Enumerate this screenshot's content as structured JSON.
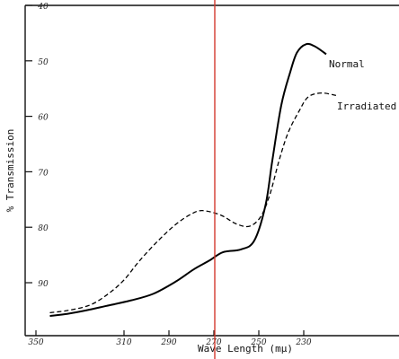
{
  "chart_data": {
    "type": "line",
    "title": "",
    "xlabel": "Wave Length (mμ)",
    "ylabel": "% Transmission",
    "xlim": [
      350,
      210
    ],
    "ylim": [
      40,
      100
    ],
    "x_ticks": [
      350,
      310,
      290,
      270,
      250,
      230
    ],
    "x_tick_labels": [
      "350",
      "310",
      "290",
      "270",
      "250",
      "230"
    ],
    "y_ticks": [
      40,
      50,
      60,
      70,
      80,
      90
    ],
    "y_tick_labels": [
      "40",
      "50",
      "60",
      "70",
      "80",
      "90"
    ],
    "grid": false,
    "reference_line": {
      "x": 270,
      "color": "#d23a2e"
    },
    "series": [
      {
        "name": "Normal",
        "style": "solid",
        "color": "#000000",
        "points": [
          [
            343,
            96.0
          ],
          [
            335,
            95.6
          ],
          [
            327,
            95.0
          ],
          [
            318,
            94.2
          ],
          [
            307,
            93.2
          ],
          [
            297,
            92.0
          ],
          [
            287,
            89.8
          ],
          [
            279,
            87.6
          ],
          [
            272,
            86.0
          ],
          [
            266,
            84.5
          ],
          [
            258,
            84.0
          ],
          [
            252,
            82.4
          ],
          [
            247,
            76.0
          ],
          [
            244,
            68.0
          ],
          [
            240,
            58.0
          ],
          [
            236,
            52.0
          ],
          [
            233,
            48.5
          ],
          [
            229,
            47.0
          ],
          [
            225,
            47.4
          ],
          [
            220,
            48.8
          ]
        ]
      },
      {
        "name": "Irradiated",
        "style": "dashed",
        "color": "#000000",
        "points": [
          [
            343,
            95.4
          ],
          [
            335,
            95.0
          ],
          [
            325,
            94.0
          ],
          [
            317,
            92.0
          ],
          [
            310,
            89.5
          ],
          [
            303,
            86.0
          ],
          [
            295,
            82.5
          ],
          [
            287,
            79.5
          ],
          [
            280,
            77.6
          ],
          [
            275,
            77.0
          ],
          [
            267,
            77.8
          ],
          [
            260,
            79.4
          ],
          [
            254,
            79.8
          ],
          [
            249,
            78.0
          ],
          [
            245,
            74.0
          ],
          [
            241,
            68.0
          ],
          [
            237,
            63.0
          ],
          [
            232,
            59.0
          ],
          [
            228,
            56.5
          ],
          [
            222,
            55.8
          ],
          [
            215,
            56.3
          ]
        ]
      }
    ]
  }
}
